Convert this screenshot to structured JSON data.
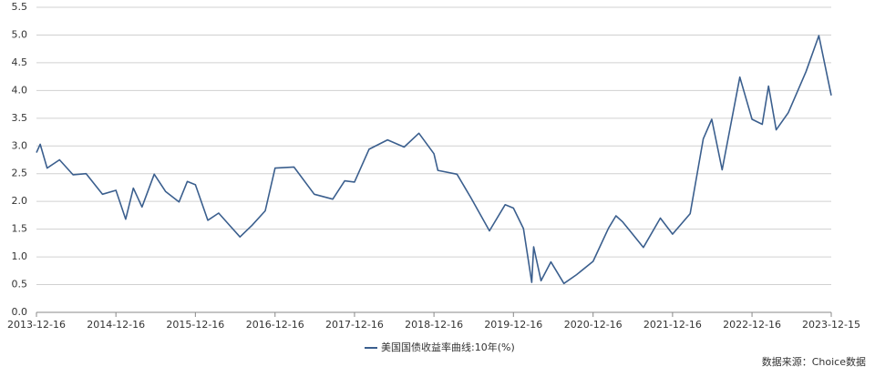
{
  "chart_data": {
    "type": "line",
    "x": [
      "2013-12-16",
      "2014-01-02",
      "2014-02-03",
      "2014-04-01",
      "2014-06-02",
      "2014-08-01",
      "2014-10-15",
      "2014-12-16",
      "2015-01-30",
      "2015-03-06",
      "2015-04-15",
      "2015-06-10",
      "2015-08-01",
      "2015-10-02",
      "2015-11-09",
      "2015-12-16",
      "2016-02-11",
      "2016-04-01",
      "2016-07-08",
      "2016-09-01",
      "2016-11-01",
      "2016-12-16",
      "2017-03-13",
      "2017-06-14",
      "2017-09-07",
      "2017-11-01",
      "2017-12-16",
      "2018-02-21",
      "2018-05-17",
      "2018-08-01",
      "2018-10-08",
      "2018-12-16",
      "2019-01-03",
      "2019-04-01",
      "2019-06-03",
      "2019-08-28",
      "2019-11-08",
      "2019-12-16",
      "2020-01-31",
      "2020-03-09",
      "2020-03-18",
      "2020-04-21",
      "2020-06-05",
      "2020-08-04",
      "2020-10-01",
      "2020-12-16",
      "2021-02-25",
      "2021-03-31",
      "2021-05-01",
      "2021-08-04",
      "2021-10-21",
      "2021-12-16",
      "2022-03-07",
      "2022-05-06",
      "2022-06-14",
      "2022-08-01",
      "2022-10-21",
      "2022-12-16",
      "2023-02-01",
      "2023-03-02",
      "2023-04-06",
      "2023-06-01",
      "2023-08-21",
      "2023-10-19",
      "2023-12-15"
    ],
    "series": [
      {
        "name": "美国国债收益率曲线:10年(%)",
        "color": "#3b5f8e",
        "values": [
          2.88,
          3.03,
          2.6,
          2.75,
          2.48,
          2.5,
          2.13,
          2.2,
          1.68,
          2.24,
          1.9,
          2.49,
          2.18,
          1.99,
          2.36,
          2.3,
          1.66,
          1.79,
          1.36,
          1.57,
          1.83,
          2.6,
          2.62,
          2.13,
          2.04,
          2.37,
          2.35,
          2.94,
          3.11,
          2.98,
          3.23,
          2.86,
          2.56,
          2.49,
          2.07,
          1.47,
          1.94,
          1.88,
          1.51,
          0.54,
          1.18,
          0.57,
          0.91,
          0.52,
          0.68,
          0.92,
          1.52,
          1.74,
          1.63,
          1.17,
          1.7,
          1.41,
          1.78,
          3.13,
          3.48,
          2.57,
          4.24,
          3.48,
          3.39,
          4.08,
          3.29,
          3.6,
          4.34,
          4.99,
          3.91
        ]
      }
    ],
    "xlim": [
      "2013-12-16",
      "2023-12-15"
    ],
    "xticks": [
      "2013-12-16",
      "2014-12-16",
      "2015-12-16",
      "2016-12-16",
      "2017-12-16",
      "2018-12-16",
      "2019-12-16",
      "2020-12-16",
      "2021-12-16",
      "2022-12-16",
      "2023-12-15"
    ],
    "ylim": [
      0,
      5.5
    ],
    "yticks": [
      {
        "value": 0,
        "label": "0.0"
      },
      0.5,
      {
        "value": 1,
        "label": "1.0"
      },
      1.5,
      {
        "value": 2,
        "label": "2.0"
      },
      2.5,
      {
        "value": 3,
        "label": "3.0"
      },
      3.5,
      {
        "value": 4,
        "label": "4.0"
      },
      4.5,
      {
        "value": 5,
        "label": "5.0"
      },
      5.5
    ],
    "grid": true,
    "legend": "bottom",
    "source": "数据来源：Choice数据"
  }
}
